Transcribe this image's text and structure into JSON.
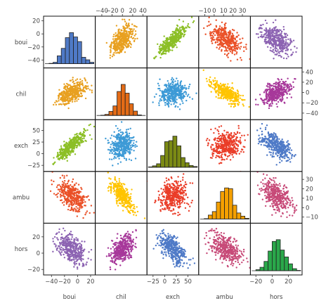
{
  "chart_data": {
    "type": "scatter-matrix",
    "variables": [
      "boui",
      "chil",
      "exch",
      "ambu",
      "hors"
    ],
    "colors": [
      "#4f7ac7",
      "#e8a020",
      "#7fb31a",
      "#ea5128",
      "#8c63b2"
    ],
    "diag_colors": [
      "#4f7ac7",
      "#e36b16",
      "#7b8a14",
      "#f5a000",
      "#2aa84a"
    ],
    "offdiag_colors": {
      "0-1": "#e8a020",
      "0-2": "#8cbf26",
      "0-3": "#ea5128",
      "0-4": "#8c63b2",
      "1-0": "#e8a020",
      "1-2": "#3d9ad6",
      "1-3": "#ffc400",
      "1-4": "#a7389a",
      "2-0": "#8cbf26",
      "2-1": "#3d9ad6",
      "2-3": "#ea3d28",
      "2-4": "#4f7ac7",
      "3-0": "#ea5128",
      "3-1": "#ffc400",
      "3-2": "#ea3d28",
      "3-4": "#c74a78",
      "4-0": "#8c63b2",
      "4-1": "#a7389a",
      "4-2": "#4f7ac7",
      "4-3": "#c74a78"
    },
    "ranges": [
      [
        -50,
        25
      ],
      [
        -50,
        45
      ],
      [
        -35,
        70
      ],
      [
        -15,
        37
      ],
      [
        -25,
        35
      ]
    ],
    "means": [
      -9,
      0,
      18,
      13,
      5
    ],
    "sds": [
      11,
      11,
      15,
      8,
      9
    ],
    "correlations": {
      "0-1": 0.45,
      "0-2": 0.85,
      "0-3": -0.5,
      "0-4": -0.45,
      "1-2": 0.0,
      "1-3": -0.7,
      "1-4": 0.45,
      "2-3": 0.0,
      "2-4": -0.6,
      "3-4": -0.5
    },
    "points_per_panel": 400,
    "bins": 12,
    "ticks": {
      "boui": [
        -40,
        -20,
        0,
        20
      ],
      "chil": [
        -40,
        -20,
        0,
        20,
        40
      ],
      "exch": [
        -25,
        0,
        25,
        50
      ],
      "ambu": [
        -10,
        0,
        10,
        20,
        30
      ],
      "hors": [
        -20,
        0,
        20
      ]
    },
    "tick_labels": {
      "boui": [
        "−40",
        "−20",
        "0",
        "20"
      ],
      "chil": [
        "−40",
        "−20",
        "0",
        "20",
        "40"
      ],
      "exch": [
        "−25",
        "0",
        "25",
        "50"
      ],
      "ambu": [
        "−10",
        "0",
        "10",
        "20",
        "30"
      ],
      "hors": [
        "−20",
        "0",
        "20"
      ]
    },
    "y_ticks": {
      "boui": [
        -40,
        -20,
        0,
        20
      ],
      "chil": [
        -40,
        -20,
        0,
        20,
        40
      ],
      "exch": [
        -25,
        0,
        25,
        50
      ],
      "ambu": [
        -10,
        0,
        10,
        20,
        30
      ],
      "hors": [
        -20,
        0,
        20
      ]
    },
    "grid": false,
    "legend": "none"
  }
}
